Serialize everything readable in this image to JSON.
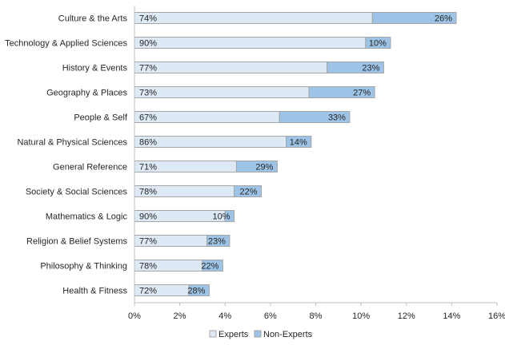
{
  "chart_data": {
    "type": "bar",
    "orientation": "horizontal",
    "stacked": true,
    "categories": [
      "Culture & the Arts",
      "Technology & Applied Sciences",
      "History & Events",
      "Geography & Places",
      "People & Self",
      "Natural & Physical Sciences",
      "General Reference",
      "Society & Social Sciences",
      "Mathematics & Logic",
      "Religion & Belief Systems",
      "Philosophy & Thinking",
      "Health & Fitness"
    ],
    "totals": [
      14.2,
      11.3,
      11.0,
      10.6,
      9.5,
      7.8,
      6.3,
      5.6,
      4.4,
      4.2,
      3.9,
      3.3
    ],
    "series": [
      {
        "name": "Experts",
        "color": "#dde9f5",
        "values": [
          10.5,
          10.2,
          8.5,
          7.7,
          6.4,
          6.7,
          4.5,
          4.4,
          4.0,
          3.2,
          3.0,
          2.4
        ],
        "labels": [
          "74%",
          "90%",
          "77%",
          "73%",
          "67%",
          "86%",
          "71%",
          "78%",
          "90%",
          "77%",
          "78%",
          "72%"
        ]
      },
      {
        "name": "Non-Experts",
        "color": "#9dc3e6",
        "values": [
          3.7,
          1.1,
          2.5,
          2.9,
          3.1,
          1.1,
          1.8,
          1.2,
          0.4,
          1.0,
          0.9,
          0.9
        ],
        "labels": [
          "26%",
          "10%",
          "23%",
          "27%",
          "33%",
          "14%",
          "29%",
          "22%",
          "10%",
          "23%",
          "22%",
          "28%"
        ]
      }
    ],
    "xlim": [
      0,
      16
    ],
    "xticks": [
      "0%",
      "2%",
      "4%",
      "6%",
      "8%",
      "10%",
      "12%",
      "14%",
      "16%"
    ],
    "grid": false,
    "legend": "bottom",
    "bar_border_color": "#a6a6a6",
    "axis_color": "#bfbfbf"
  }
}
